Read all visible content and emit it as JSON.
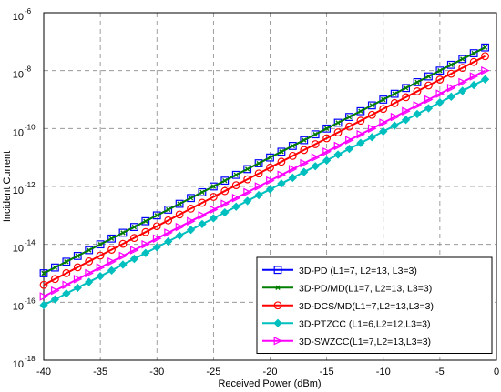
{
  "chart_data": {
    "type": "line",
    "xlabel": "Received Power (dBm)",
    "ylabel": "Incident Current",
    "xlim": [
      -40,
      0
    ],
    "ylim_log10": [
      -18,
      -6
    ],
    "yscale": "log",
    "x_ticks": [
      "-40",
      "-35",
      "-30",
      "-25",
      "-20",
      "-15",
      "-10",
      "-5",
      "0"
    ],
    "y_tick_base": "10",
    "y_tick_exponents": [
      "-6",
      "-8",
      "-10",
      "-12",
      "-14",
      "-16",
      "-18"
    ],
    "grid": true,
    "legend_position": "bottom-right",
    "x": [
      -40,
      -39,
      -38,
      -37,
      -36,
      -35,
      -34,
      -33,
      -32,
      -31,
      -30,
      -29,
      -28,
      -27,
      -26,
      -25,
      -24,
      -23,
      -22,
      -21,
      -20,
      -19,
      -18,
      -17,
      -16,
      -15,
      -14,
      -13,
      -12,
      -11,
      -10,
      -9,
      -8,
      -7,
      -6,
      -5,
      -4,
      -3,
      -2,
      -1
    ],
    "series": [
      {
        "name": "3D-PD (L1=7, L2=13, L3=3)",
        "color": "#0000ff",
        "marker": "square",
        "y_log10_at_x_min": -15.0,
        "y_log10_at_x_max": -7.2
      },
      {
        "name": "3D-PD/MD(L1=7, L2=13, L3=3)",
        "color": "#007f00",
        "marker": "x",
        "y_log10_at_x_min": -15.0,
        "y_log10_at_x_max": -7.2
      },
      {
        "name": "3D-DCS/MD(L1=7,L2=13,L3=3)",
        "color": "#ff0000",
        "marker": "circle",
        "y_log10_at_x_min": -15.4,
        "y_log10_at_x_max": -7.5
      },
      {
        "name": "3D-PTZCC (L1=6,L2=12,L3=3)",
        "color": "#00bfbf",
        "marker": "diamond",
        "y_log10_at_x_min": -16.1,
        "y_log10_at_x_max": -8.3
      },
      {
        "name": "3D-SWZCC(L1=7,L2=13,L3=3)",
        "color": "#ff00ff",
        "marker": "triangle-right",
        "y_log10_at_x_min": -15.8,
        "y_log10_at_x_max": -8.0
      }
    ]
  }
}
